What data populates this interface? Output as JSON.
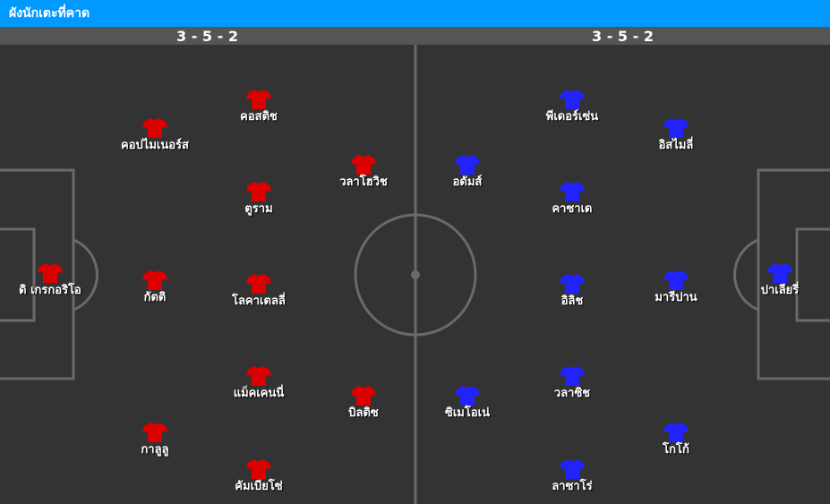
{
  "header": {
    "title": "ผังนักเตะที่คาด"
  },
  "home": {
    "formation": "3 - 5 - 2",
    "color": "#dd0000",
    "players": [
      "ดิ เกรกอริโอ",
      "กัตติ",
      "กาลูลู",
      "คอปไมเนอร์ส",
      "คอสติช",
      "ตูราม",
      "โลคาเตลลี่",
      "แม็คเคนนี่",
      "คัมเบียโซ่",
      "วลาโฮวิช",
      "บิลดิซ"
    ]
  },
  "away": {
    "formation": "3 - 5 - 2",
    "color": "#2222ff",
    "players": [
      "ปาเลียรี่",
      "อิสไมลี่",
      "มารีปาน",
      "โกโก้",
      "พีเดอร์เซ่น",
      "คาซาเด",
      "อิลิช",
      "วลาซิช",
      "ลาซาโร่",
      "อดัมส์",
      "ซิเมโอเน่"
    ]
  },
  "icons": {
    "player": "shirt-icon"
  }
}
